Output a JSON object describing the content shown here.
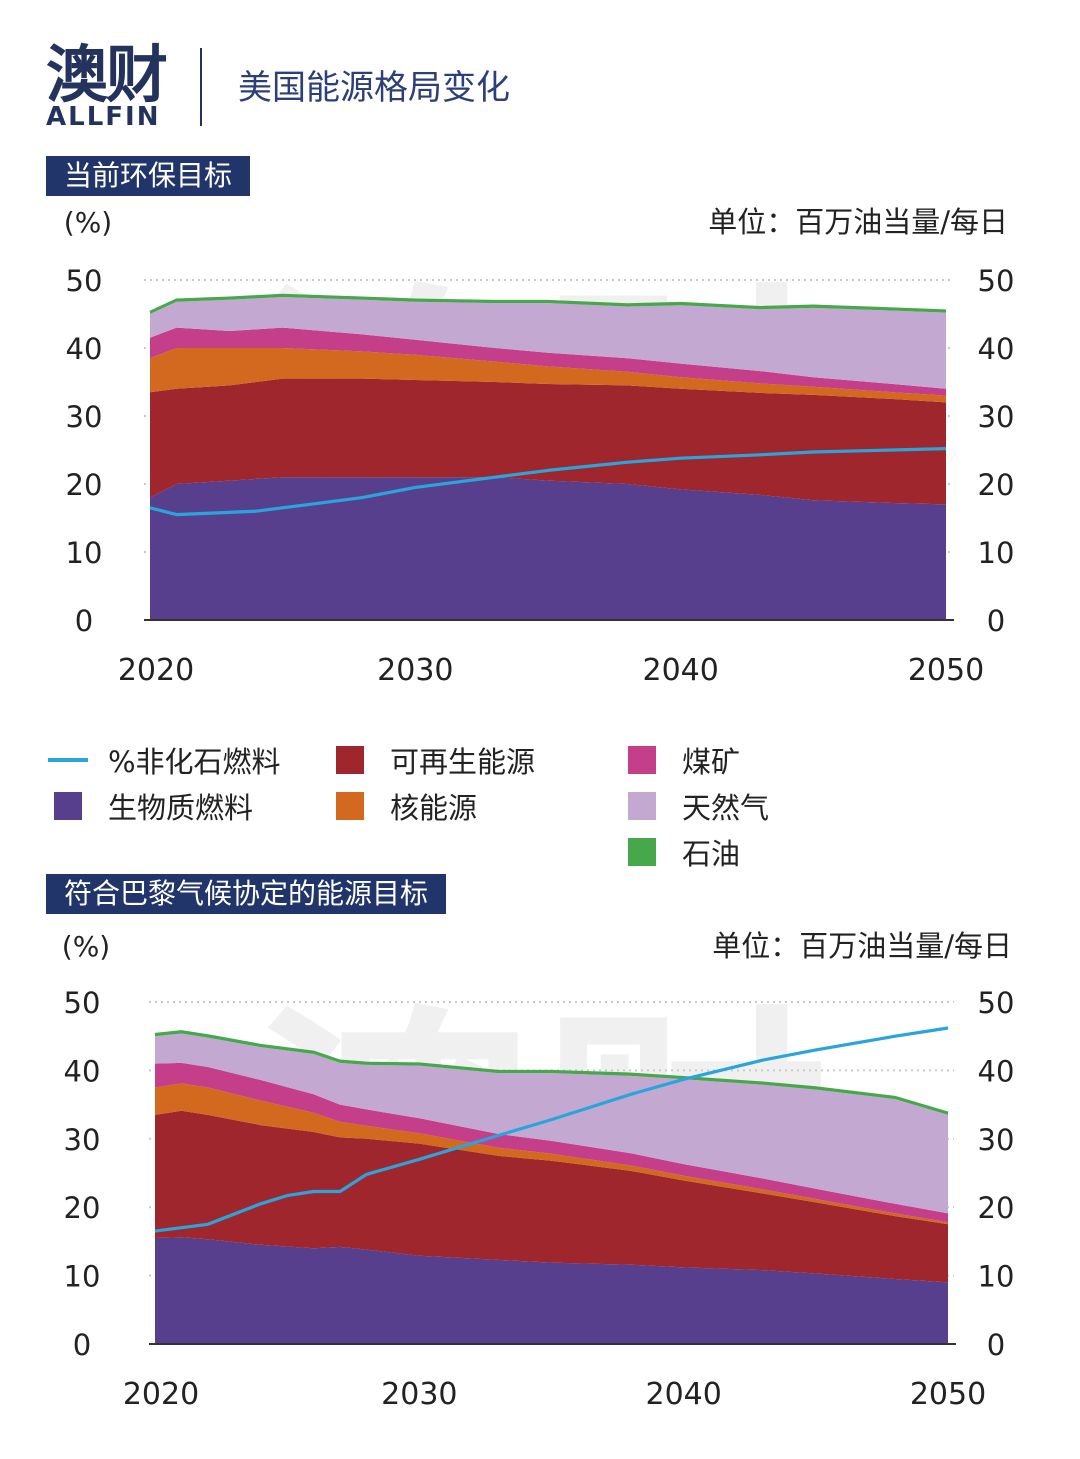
{
  "brand": {
    "name_cn": "澳财",
    "name_en": "ALLFIN",
    "watermark_cn": "澳财",
    "watermark_en": "ALLFIN"
  },
  "page_title": "美国能源格局变化",
  "colors": {
    "brand": "#24325e",
    "label_bg": "#22356a",
    "biofuel": "#583f8e",
    "renewable": "#a0262d",
    "nuclear": "#d2691e",
    "coal": "#c53e8a",
    "gas": "#c3a9d2",
    "oil": "#47a84b",
    "line": "#2aa5dc"
  },
  "legend": [
    {
      "key": "line",
      "label": "%非化石燃料",
      "icon": "line-swatch"
    },
    {
      "key": "biofuel",
      "label": "生物质燃料",
      "icon": "square-swatch"
    },
    {
      "key": "renewable",
      "label": "可再生能源",
      "icon": "square-swatch"
    },
    {
      "key": "nuclear",
      "label": "核能源",
      "icon": "square-swatch"
    },
    {
      "key": "coal",
      "label": "煤矿",
      "icon": "square-swatch"
    },
    {
      "key": "gas",
      "label": "天然气",
      "icon": "square-swatch"
    },
    {
      "key": "oil",
      "label": "石油",
      "icon": "square-swatch"
    }
  ],
  "chart_data": [
    {
      "type": "area",
      "title": "当前环保目标",
      "ylabel_left": "(%)",
      "ylabel_right": "单位：百万油当量/每日",
      "ylim": [
        0,
        50
      ],
      "yticks": [
        0,
        10,
        20,
        30,
        40,
        50
      ],
      "xticks": [
        2020,
        2030,
        2040,
        2050
      ],
      "grid": "dotted horizontal",
      "stacked": true,
      "x": [
        2020,
        2021,
        2023,
        2025,
        2028,
        2030,
        2033,
        2035,
        2038,
        2040,
        2043,
        2045,
        2048,
        2050
      ],
      "series": [
        {
          "name": "生物质燃料",
          "key": "biofuel",
          "values": [
            18,
            20,
            20.5,
            21,
            21,
            21,
            21,
            20.5,
            20,
            19.2,
            18.4,
            17.6,
            17.2,
            17
          ]
        },
        {
          "name": "可再生能源",
          "key": "renewable",
          "values": [
            15.5,
            14,
            14,
            14.5,
            14.5,
            14.3,
            14,
            14.2,
            14.5,
            14.8,
            15,
            15.5,
            15.3,
            15
          ]
        },
        {
          "name": "核能源",
          "key": "nuclear",
          "values": [
            5,
            6,
            5.5,
            4.5,
            4,
            3.7,
            3,
            2.6,
            2,
            1.7,
            1.4,
            1.2,
            1,
            1
          ]
        },
        {
          "name": "煤矿",
          "key": "coal",
          "values": [
            3,
            3,
            2.5,
            3,
            2.5,
            2.2,
            2,
            2,
            2,
            2,
            1.8,
            1.4,
            1.2,
            1
          ]
        },
        {
          "name": "天然气",
          "key": "gas",
          "values": [
            3.5,
            3.8,
            4.6,
            4.5,
            5.1,
            5.6,
            6.6,
            7.3,
            7.6,
            8.6,
            9.1,
            10.2,
            10.8,
            11.2
          ]
        },
        {
          "name": "石油",
          "key": "oil",
          "values": [
            0.3,
            0.3,
            0.3,
            0.3,
            0.3,
            0.3,
            0.3,
            0.3,
            0.3,
            0.3,
            0.3,
            0.3,
            0.3,
            0.3
          ]
        }
      ],
      "line": {
        "name": "%非化石燃料",
        "x": [
          2020,
          2021,
          2024,
          2026,
          2028,
          2030,
          2033,
          2035,
          2038,
          2040,
          2043,
          2045,
          2048,
          2050
        ],
        "values": [
          16.5,
          15.5,
          16,
          17,
          18,
          19.5,
          21,
          22,
          23.2,
          23.8,
          24.3,
          24.7,
          25,
          25.2
        ]
      }
    },
    {
      "type": "area",
      "title": "符合巴黎气候协定的能源目标",
      "ylabel_left": "(%)",
      "ylabel_right": "单位：百万油当量/每日",
      "ylim": [
        0,
        50
      ],
      "yticks": [
        0,
        10,
        20,
        30,
        40,
        50
      ],
      "xticks": [
        2020,
        2030,
        2040,
        2050
      ],
      "grid": "dotted horizontal",
      "stacked": true,
      "x": [
        2020,
        2021,
        2022,
        2024,
        2026,
        2027,
        2028,
        2030,
        2033,
        2035,
        2038,
        2040,
        2043,
        2045,
        2048,
        2050
      ],
      "series": [
        {
          "name": "生物质燃料",
          "key": "biofuel",
          "values": [
            15.5,
            15.6,
            15.3,
            14.5,
            14,
            14.2,
            13.8,
            12.9,
            12.3,
            11.9,
            11.6,
            11.2,
            10.8,
            10.3,
            9.5,
            9
          ]
        },
        {
          "name": "可再生能源",
          "key": "renewable",
          "values": [
            18,
            18.5,
            18.2,
            17.5,
            17,
            16,
            16.2,
            16.4,
            15.2,
            14.9,
            13.7,
            12.7,
            11.2,
            10.4,
            9.2,
            8.5
          ]
        },
        {
          "name": "核能源",
          "key": "nuclear",
          "values": [
            4,
            4,
            4,
            3.6,
            2.8,
            2.3,
            1.9,
            1.5,
            1.2,
            1,
            0.8,
            0.7,
            0.6,
            0.5,
            0.4,
            0.3
          ]
        },
        {
          "name": "煤矿",
          "key": "coal",
          "values": [
            3.5,
            3,
            3,
            3,
            2.7,
            2.5,
            2.4,
            2.2,
            2,
            1.9,
            1.8,
            1.7,
            1.6,
            1.5,
            1.4,
            1.3
          ]
        },
        {
          "name": "天然气",
          "key": "gas",
          "values": [
            4,
            4.3,
            4.3,
            4.8,
            5.9,
            6.1,
            6.5,
            7.7,
            8.9,
            9.9,
            11.3,
            12.4,
            13.7,
            14.5,
            15.3,
            14.4
          ]
        },
        {
          "name": "石油",
          "key": "oil",
          "values": [
            0.3,
            0.3,
            0.3,
            0.3,
            0.3,
            0.3,
            0.3,
            0.3,
            0.3,
            0.3,
            0.3,
            0.3,
            0.3,
            0.3,
            0.3,
            0.3
          ]
        }
      ],
      "line": {
        "name": "%非化石燃料",
        "x": [
          2020,
          2021,
          2022,
          2024,
          2025,
          2026,
          2027,
          2028,
          2030,
          2033,
          2035,
          2038,
          2040,
          2043,
          2045,
          2048,
          2050
        ],
        "values": [
          16.5,
          17,
          17.5,
          20.5,
          21.7,
          22.3,
          22.3,
          24.8,
          27,
          30.5,
          32.8,
          36.5,
          38.7,
          41.5,
          43,
          45,
          46.2
        ]
      }
    }
  ]
}
